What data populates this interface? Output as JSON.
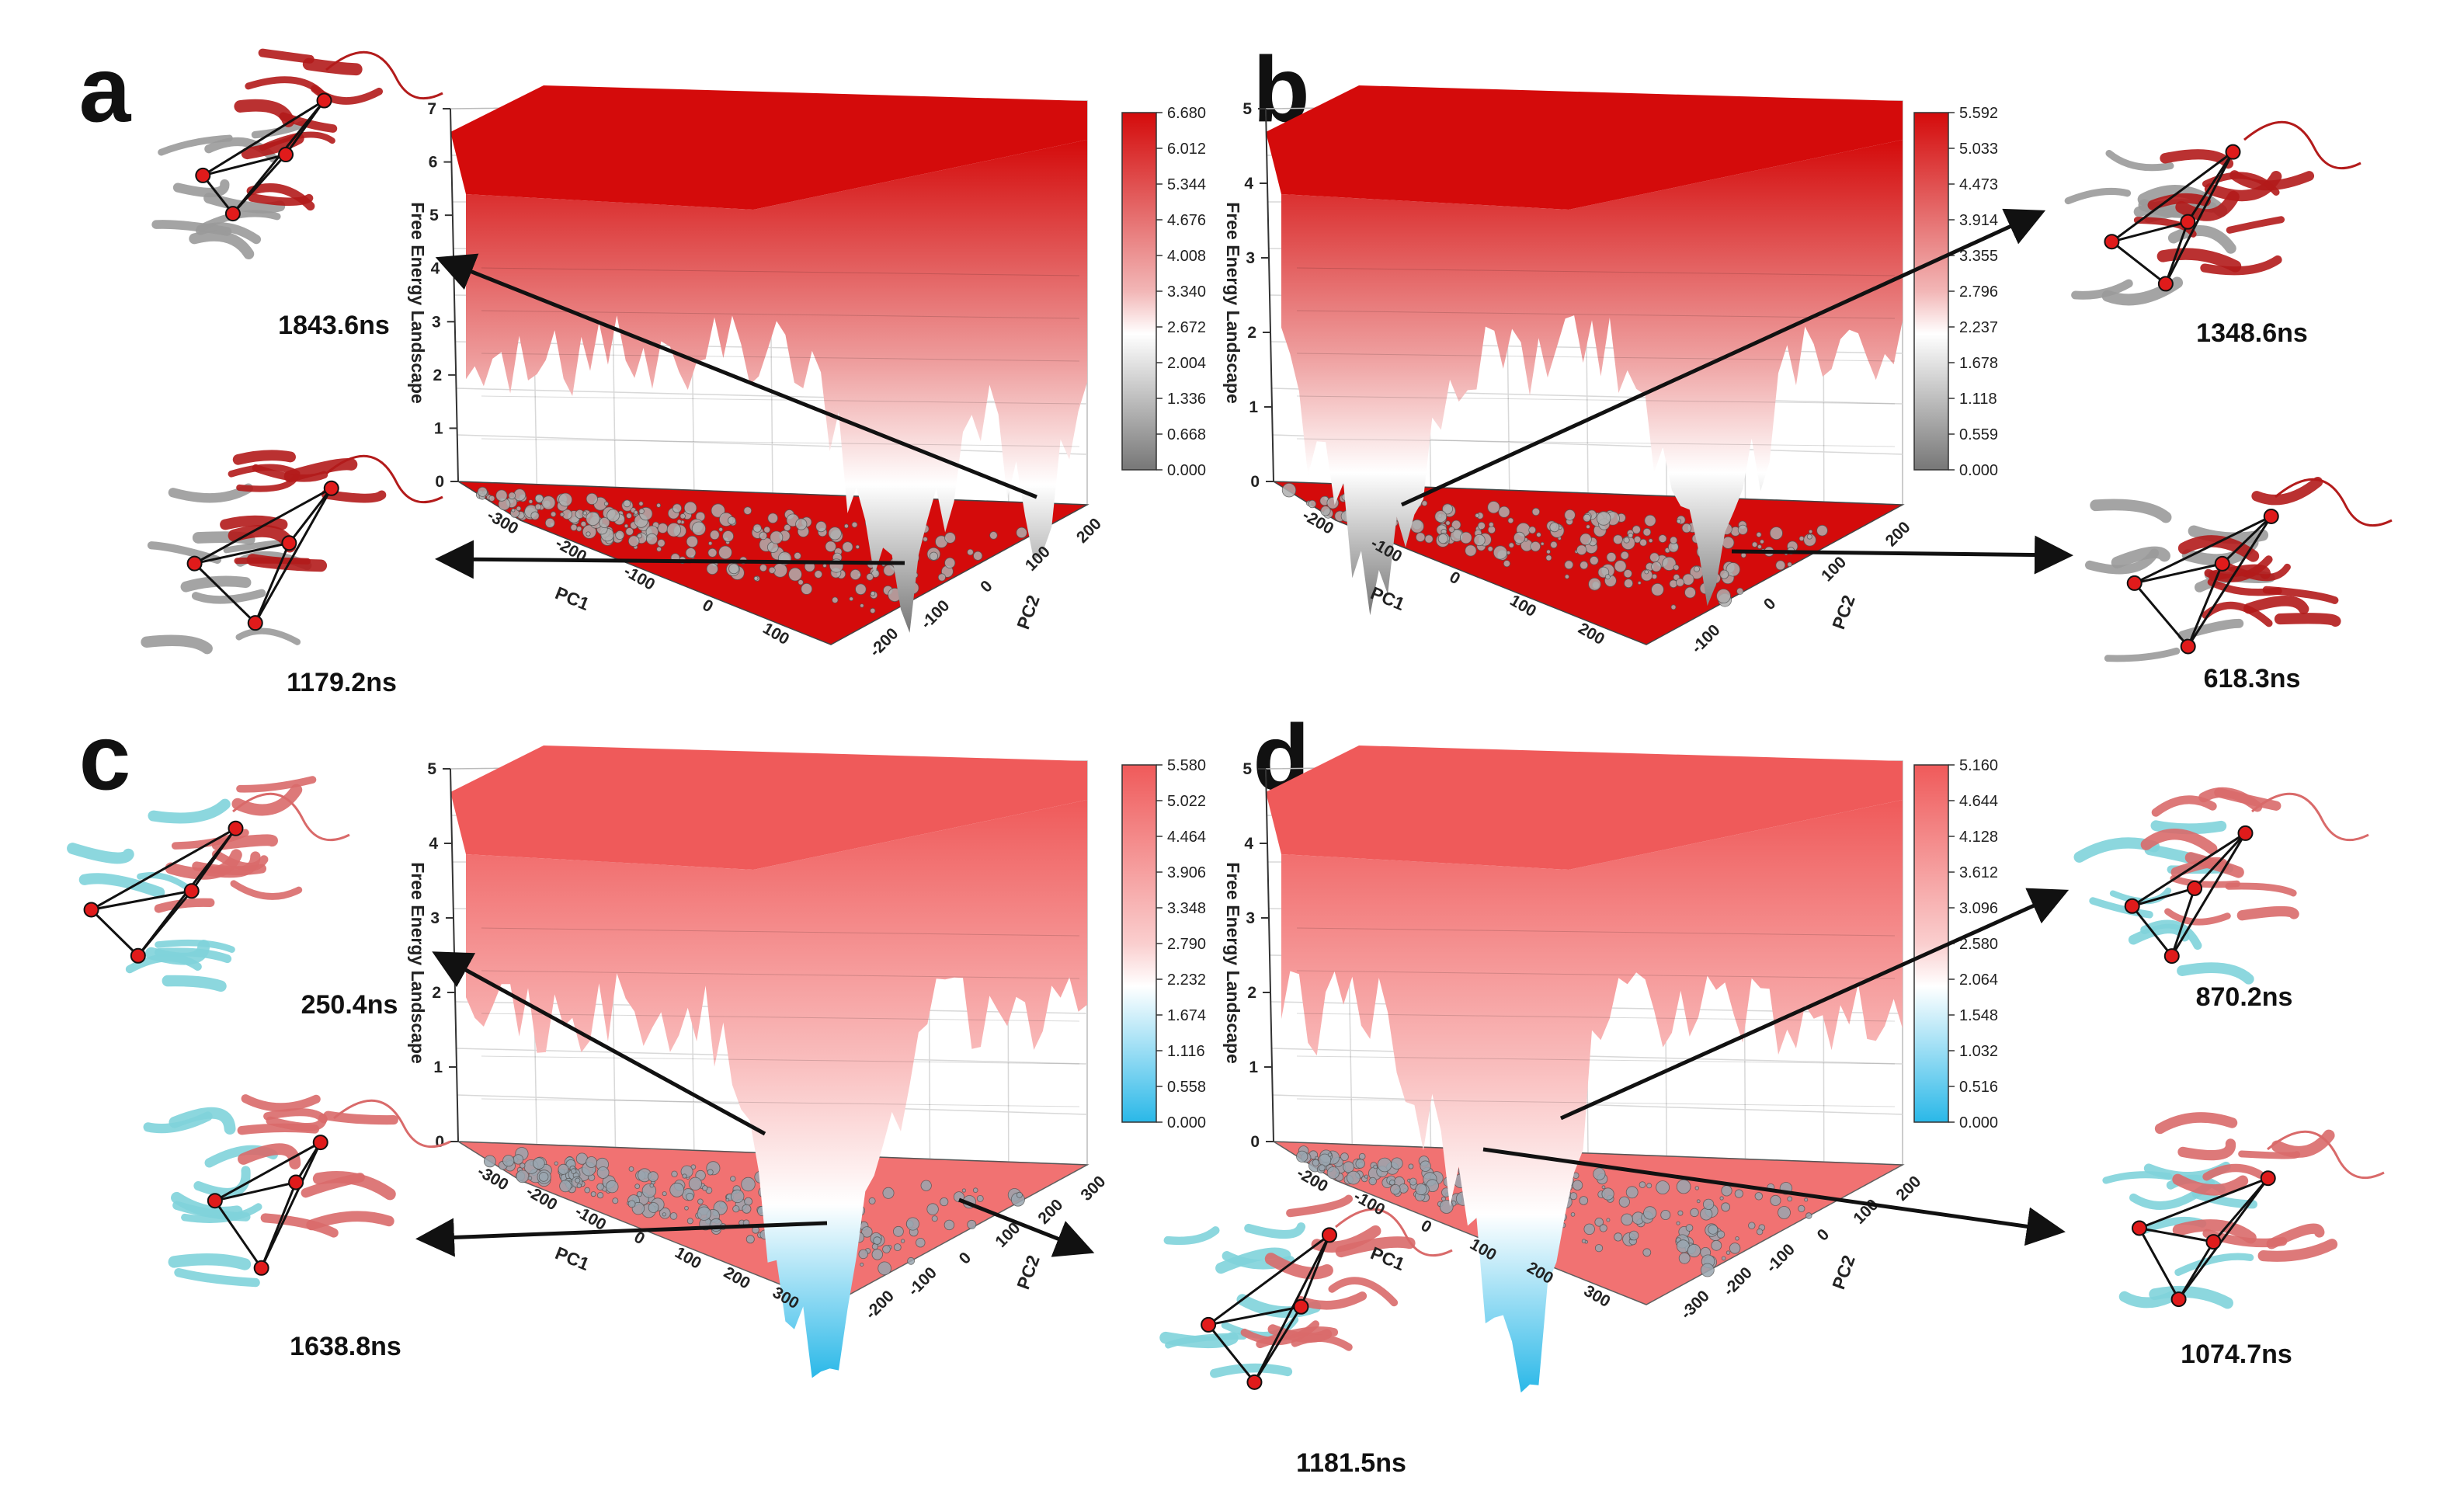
{
  "chart_data": [
    {
      "type": "surface",
      "panel": "a",
      "title": "",
      "zlabel": "Free Energy Landscape",
      "xlabel": "PC1",
      "ylabel": "PC2",
      "zlim": [
        0,
        7
      ],
      "z_ticks": [
        "0",
        "1",
        "2",
        "3",
        "4",
        "5",
        "6",
        "7"
      ],
      "x_ticks": [
        "-300",
        "-200",
        "-100",
        "0",
        "100"
      ],
      "y_ticks": [
        "-200",
        "-100",
        "0",
        "100",
        "200"
      ],
      "colorbar": [
        "6.680",
        "6.012",
        "5.344",
        "4.676",
        "4.008",
        "3.340",
        "2.672",
        "2.004",
        "1.336",
        "0.668",
        "0.000"
      ],
      "colors": {
        "high": "#d40b0b",
        "low": "#777777",
        "mid": "#ffffff"
      },
      "snapshots": [
        {
          "label": "1843.6ns",
          "domain_colors": [
            "#b31b1b",
            "#9a9a9a"
          ]
        },
        {
          "label": "1179.2ns",
          "domain_colors": [
            "#b31b1b",
            "#9a9a9a"
          ]
        }
      ]
    },
    {
      "type": "surface",
      "panel": "b",
      "title": "",
      "zlabel": "Free Energy Landscape",
      "xlabel": "PC1",
      "ylabel": "PC2",
      "zlim": [
        0,
        5
      ],
      "z_ticks": [
        "0",
        "1",
        "2",
        "3",
        "4",
        "5"
      ],
      "x_ticks": [
        "-200",
        "-100",
        "0",
        "100",
        "200"
      ],
      "y_ticks": [
        "-100",
        "0",
        "100",
        "200"
      ],
      "colorbar": [
        "5.592",
        "5.033",
        "4.473",
        "3.914",
        "3.355",
        "2.796",
        "2.237",
        "1.678",
        "1.118",
        "0.559",
        "0.000"
      ],
      "colors": {
        "high": "#d40b0b",
        "low": "#777777",
        "mid": "#ffffff"
      },
      "snapshots": [
        {
          "label": "1348.6ns",
          "domain_colors": [
            "#b31b1b",
            "#9a9a9a"
          ]
        },
        {
          "label": "618.3ns",
          "domain_colors": [
            "#b31b1b",
            "#9a9a9a"
          ]
        }
      ]
    },
    {
      "type": "surface",
      "panel": "c",
      "title": "",
      "zlabel": "Free Energy Landscape",
      "xlabel": "PC1",
      "ylabel": "PC2",
      "zlim": [
        0,
        5
      ],
      "z_ticks": [
        "0",
        "1",
        "2",
        "3",
        "4",
        "5"
      ],
      "x_ticks": [
        "-300",
        "-200",
        "-100",
        "0",
        "100",
        "200",
        "300"
      ],
      "y_ticks": [
        "-200",
        "-100",
        "0",
        "100",
        "200",
        "300"
      ],
      "colorbar": [
        "5.580",
        "5.022",
        "4.464",
        "3.906",
        "3.348",
        "2.790",
        "2.232",
        "1.674",
        "1.116",
        "0.558",
        "0.000"
      ],
      "colors": {
        "high": "#ef5a5a",
        "low": "#2ab8e8",
        "mid": "#ffffff"
      },
      "snapshots": [
        {
          "label": "250.4ns",
          "domain_colors": [
            "#d96a6a",
            "#7fd3da"
          ]
        },
        {
          "label": "1638.8ns",
          "domain_colors": [
            "#d96a6a",
            "#7fd3da"
          ]
        },
        {
          "label": "1181.5ns",
          "domain_colors": [
            "#d96a6a",
            "#7fd3da"
          ]
        }
      ]
    },
    {
      "type": "surface",
      "panel": "d",
      "title": "",
      "zlabel": "Free Energy Landscape",
      "xlabel": "PC1",
      "ylabel": "PC2",
      "zlim": [
        0,
        5
      ],
      "z_ticks": [
        "0",
        "1",
        "2",
        "3",
        "4",
        "5"
      ],
      "x_ticks": [
        "-200",
        "-100",
        "0",
        "100",
        "200",
        "300"
      ],
      "y_ticks": [
        "-300",
        "-200",
        "-100",
        "0",
        "100",
        "200"
      ],
      "colorbar": [
        "5.160",
        "4.644",
        "4.128",
        "3.612",
        "3.096",
        "2.580",
        "2.064",
        "1.548",
        "1.032",
        "0.516",
        "0.000"
      ],
      "colors": {
        "high": "#ef5a5a",
        "low": "#2ab8e8",
        "mid": "#ffffff"
      },
      "snapshots": [
        {
          "label": "870.2ns",
          "domain_colors": [
            "#d96a6a",
            "#7fd3da"
          ]
        },
        {
          "label": "1074.7ns",
          "domain_colors": [
            "#d96a6a",
            "#7fd3da"
          ]
        }
      ]
    }
  ]
}
